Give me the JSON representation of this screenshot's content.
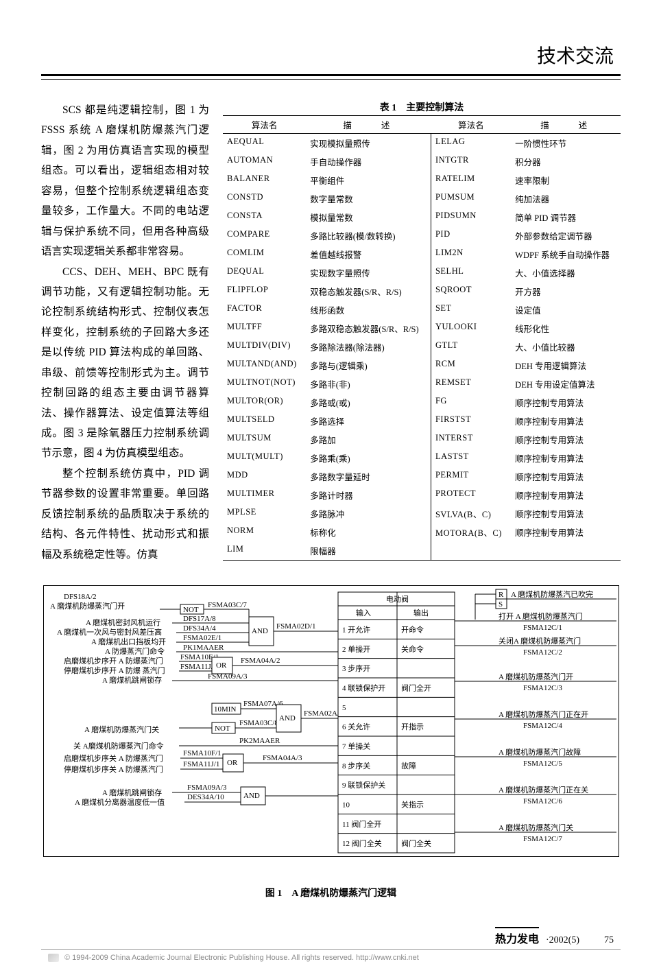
{
  "header": {
    "section": "技术交流"
  },
  "body": {
    "p1": "SCS 都是纯逻辑控制，图 1 为 FSSS 系统 A 磨煤机防爆蒸汽门逻辑，图 2 为用仿真语言实现的模型组态。可以看出，逻辑组态相对较容易，但整个控制系统逻辑组态变量较多，工作量大。不同的电站逻辑与保护系统不同，但用各种高级语言实现逻辑关系都非常容易。",
    "p2": "CCS、DEH、MEH、BPC 既有调节功能，又有逻辑控制功能。无论控制系统结构形式、控制仪表怎样变化，控制系统的子回路大多还是以传统 PID 算法构成的单回路、串级、前馈等控制形式为主。调节控制回路的组态主要由调节器算法、操作器算法、设定值算法等组成。图 3 是除氧器压力控制系统调节示意，图 4 为仿真模型组态。",
    "p3": "整个控制系统仿真中，PID 调节器参数的设置非常重要。单回路反馈控制系统的品质取决于系统的结构、各元件特性、扰动形式和振幅及系统稳定性等。仿真"
  },
  "table": {
    "title": "表 1　主要控制算法",
    "headers": [
      "算法名",
      "描　　述",
      "算法名",
      "描　　述"
    ],
    "rows": [
      [
        "AEQUAL",
        "实现模拟量照传",
        "LELAG",
        "一阶惯性环节"
      ],
      [
        "AUTOMAN",
        "手自动操作器",
        "INTGTR",
        "积分器"
      ],
      [
        "BALANER",
        "平衡组件",
        "RATELIM",
        "速率限制"
      ],
      [
        "CONSTD",
        "数字量常数",
        "PUMSUM",
        "纯加法器"
      ],
      [
        "CONSTA",
        "模拟量常数",
        "PIDSUMN",
        "简单 PID 调节器"
      ],
      [
        "COMPARE",
        "多路比较器(模/数转换)",
        "PID",
        "外部参数给定调节器"
      ],
      [
        "COMLIM",
        "差值越线报警",
        "LIM2N",
        "WDPF 系统手自动操作器"
      ],
      [
        "DEQUAL",
        "实现数字量照传",
        "SELHL",
        "大、小值选择器"
      ],
      [
        "FLIPFLOP",
        "双稳态触发器(S/R、R/S)",
        "SQROOT",
        "开方器"
      ],
      [
        "FACTOR",
        "线形函数",
        "SET",
        "设定值"
      ],
      [
        "MULTFF",
        "多路双稳态触发器(S/R、R/S)",
        "YULOOKI",
        "线形化性"
      ],
      [
        "MULTDIV(DIV)",
        "多路除法器(除法器)",
        "GTLT",
        "大、小值比较器"
      ],
      [
        "MULTAND(AND)",
        "多路与(逻辑乘)",
        "RCM",
        "DEH 专用逻辑算法"
      ],
      [
        "MULTNOT(NOT)",
        "多路非(非)",
        "REMSET",
        "DEH 专用设定值算法"
      ],
      [
        "MULTOR(OR)",
        "多路或(或)",
        "FG",
        "顺序控制专用算法"
      ],
      [
        "MULTSELD",
        "多路选择",
        "FIRSTST",
        "顺序控制专用算法"
      ],
      [
        "MULTSUM",
        "多路加",
        "INTERST",
        "顺序控制专用算法"
      ],
      [
        "MULT(MULT)",
        "多路乘(乘)",
        "LASTST",
        "顺序控制专用算法"
      ],
      [
        "MDD",
        "多路数字量延时",
        "PERMIT",
        "顺序控制专用算法"
      ],
      [
        "MULTIMER",
        "多路计时器",
        "PROTECT",
        "顺序控制专用算法"
      ],
      [
        "MPLSE",
        "多路脉冲",
        "SVLVA(B、C)",
        "顺序控制专用算法"
      ],
      [
        "NORM",
        "标称化",
        "MOTORA(B、C)",
        "顺序控制专用算法"
      ],
      [
        "LIM",
        "限幅器",
        "",
        ""
      ]
    ]
  },
  "diagram": {
    "caption": "图 1　A 磨煤机防爆蒸汽门逻辑",
    "left_title1": "DFS18A/2",
    "left_title2": "A 磨煤机防爆蒸汽门开",
    "labels_left_upper": [
      "A 磨煤机密封风机运行",
      "A 磨煤机一次风与密封风差压高",
      "A 磨煤机出口挡板均开",
      "A 防爆蒸汽门命令",
      "启磨煤机步序开 A 防爆蒸汽门",
      "停磨煤机步序开 A 防爆 蒸汽门",
      "A 磨煤机跳闸锁存"
    ],
    "labels_left_lower": [
      "A 磨煤机防爆蒸汽门关",
      "关 A磨煤机防爆蒸汽门命令",
      "启磨煤机步序关 A 防爆蒸汽门",
      "停磨煤机步序关 A 防爆蒸汽门",
      "A 磨煤机跳闸锁存",
      "A 磨煤机分离器温度低一值"
    ],
    "tags_upper": [
      "DFS17A/8",
      "DFS34A/4",
      "FSMA02E/1",
      "PK1MAAER",
      "FSMA10E/1",
      "FSMA11J/1",
      "FSMA09A/3",
      "FSMA03C/7",
      "FSMA04A/2",
      "FSMA02D/1"
    ],
    "tags_lower": [
      "FSMA07A/6",
      "FSMA03C/8",
      "PK2MAAER",
      "FSMA10F/1",
      "FSMA11J/1",
      "FSMA09A/3",
      "DES34A/10",
      "FSMA02A/6",
      "FSMA04A/3"
    ],
    "gates": {
      "not": "NOT",
      "and": "AND",
      "or": "OR",
      "tenmin": "10MIN"
    },
    "valve_block": {
      "title": "电动阀",
      "col_in": "输入",
      "col_out": "输出",
      "rows": [
        [
          "1 开允许",
          "开命令"
        ],
        [
          "2 单操开",
          "关命令"
        ],
        [
          "3 步序开",
          ""
        ],
        [
          "4 联锁保护开",
          "阀门全开"
        ],
        [
          "5",
          ""
        ],
        [
          "6 关允许",
          "开指示"
        ],
        [
          "7 单操关",
          ""
        ],
        [
          "8 步序关",
          "故障"
        ],
        [
          "9 联锁保护关",
          ""
        ],
        [
          "10",
          "关指示"
        ],
        [
          "11 阀门全开",
          ""
        ],
        [
          "12 阀门全关",
          "阀门全关"
        ]
      ]
    },
    "rs_block": {
      "r": "R",
      "s": "S",
      "title": "A 磨煤机防爆蒸汽已吹完"
    },
    "right_outputs": [
      {
        "t": "打开 A 磨煤机防爆蒸汽门",
        "c": "FSMA12C/1"
      },
      {
        "t": "关闭A 磨煤机防爆蒸汽门",
        "c": "FSMA12C/2"
      },
      {
        "t": "A 磨煤机防爆蒸汽门开",
        "c": "FSMA12C/3"
      },
      {
        "t": "A 磨煤机防爆蒸汽门正在开",
        "c": "FSMA12C/4"
      },
      {
        "t": "A 磨煤机防爆蒸汽门故障",
        "c": "FSMA12C/5"
      },
      {
        "t": "A 磨煤机防爆蒸汽门正在关",
        "c": "FSMA12C/6"
      },
      {
        "t": "A 磨煤机防爆蒸汽门关",
        "c": "FSMA12C/7"
      }
    ]
  },
  "footer": {
    "journal": "热力发电",
    "issue": "·2002(5)",
    "page": "75"
  },
  "copyright": "© 1994-2009 China Academic Journal Electronic Publishing House. All rights reserved.   http://www.cnki.net"
}
